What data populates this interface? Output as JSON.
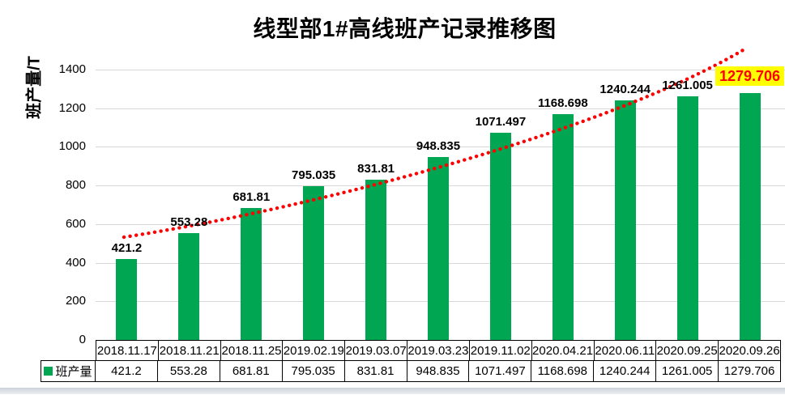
{
  "title": "线型部1#高线班产记录推移图",
  "y_axis": {
    "label": "班产量/T"
  },
  "legend": {
    "label": "班产量"
  },
  "colors": {
    "bar": "#00A651",
    "trendline": "#FF0000",
    "highlight_bg": "#FFFF00",
    "highlight_text": "#FF0000",
    "gridline": "#D8D8D8",
    "table_border": "#000000",
    "text": "#000000"
  },
  "chart_data": {
    "type": "bar",
    "title": "线型部1#高线班产记录推移图",
    "xlabel": "",
    "ylabel": "班产量/T",
    "ylim": [
      0,
      1400
    ],
    "ytick_step": 200,
    "yticks": [
      0,
      200,
      400,
      600,
      800,
      1000,
      1200,
      1400
    ],
    "grid": true,
    "legend_position": "data-table-left",
    "categories": [
      "2018.11.17",
      "2018.11.21",
      "2018.11.25",
      "2019.02.19",
      "2019.03.07",
      "2019.03.23",
      "2019.11.02",
      "2020.04.21",
      "2020.06.11",
      "2020.09.25",
      "2020.09.26"
    ],
    "series": [
      {
        "name": "班产量",
        "values": [
          421.2,
          553.28,
          681.81,
          795.035,
          831.81,
          948.835,
          1071.497,
          1168.698,
          1240.244,
          1261.005,
          1279.706
        ]
      }
    ],
    "data_labels": [
      "421.2",
      "553.28",
      "681.81",
      "795.035",
      "831.81",
      "948.835",
      "1071.497",
      "1168.698",
      "1240.244",
      "1261.005",
      "1279.706"
    ],
    "highlighted_label": "1279.706",
    "trendline": {
      "style": "dotted",
      "shape": "exponential-upward",
      "color": "#FF0000"
    },
    "data_table": true
  }
}
